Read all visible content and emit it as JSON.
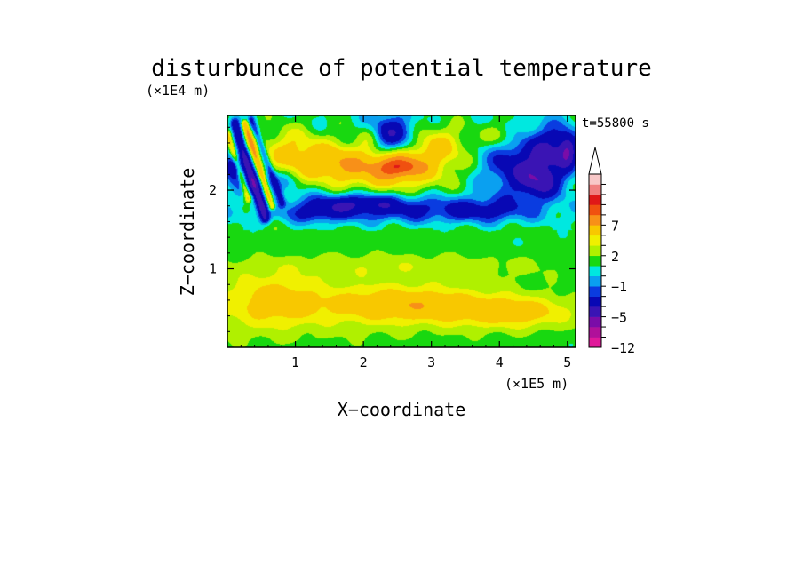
{
  "chart_data": {
    "type": "heatmap",
    "title": "disturbunce of potential temperature",
    "time_label": "t=55800 s",
    "xlabel": "X−coordinate",
    "ylabel": "Z−coordinate",
    "x_unit": "(×1E5 m)",
    "y_unit": "(×1E4 m)",
    "xlim": [
      0,
      5.12
    ],
    "ylim": [
      0,
      2.95
    ],
    "x_ticks": [
      1,
      2,
      3,
      4,
      5
    ],
    "y_ticks": [
      1,
      2
    ],
    "x_tick_labels": [
      "1",
      "2",
      "3",
      "4",
      "5"
    ],
    "y_tick_labels": [
      "1",
      "2"
    ],
    "grid": false,
    "colorbar": {
      "levels_bottom_to_top": [
        -12,
        -9,
        -7,
        -5,
        -3,
        -2,
        -1,
        0,
        1,
        2,
        3,
        5,
        7,
        9,
        12
      ],
      "colors_bottom_to_top": [
        "#e0189a",
        "#b0109a",
        "#7a0ca8",
        "#3a14b4",
        "#0808b4",
        "#0a3ce0",
        "#0aa0f0",
        "#00e8e0",
        "#18d810",
        "#b0f000",
        "#f0f000",
        "#f8c800",
        "#f89018",
        "#f05010",
        "#e01818",
        "#f08080",
        "#f8c8c8"
      ],
      "tick_labels": [
        "7",
        "2",
        "−1",
        "−5",
        "−12"
      ],
      "tick_values": [
        7,
        2,
        -1,
        -5,
        -12
      ],
      "extend": "max"
    },
    "blobs": [
      {
        "x": 0.0,
        "z": 0.5,
        "rx": 5.3,
        "rz": 0.55,
        "v": 1.6
      },
      {
        "x": 2.6,
        "z": 0.55,
        "rx": 1.2,
        "rz": 0.22,
        "v": 3.5
      },
      {
        "x": 4.2,
        "z": 0.45,
        "rx": 0.9,
        "rz": 0.2,
        "v": 3.0
      },
      {
        "x": 0.7,
        "z": 0.6,
        "rx": 0.6,
        "rz": 0.3,
        "v": 2.5
      },
      {
        "x": 2.5,
        "z": 1.05,
        "rx": 2.8,
        "rz": 0.18,
        "v": 1.3
      },
      {
        "x": 2.5,
        "z": 1.5,
        "rx": 3.0,
        "rz": 0.15,
        "v": 0.6
      },
      {
        "x": 2.4,
        "z": 2.3,
        "rx": 0.85,
        "rz": 0.3,
        "v": 5.0
      },
      {
        "x": 2.5,
        "z": 2.3,
        "rx": 0.3,
        "rz": 0.12,
        "v": 4.5
      },
      {
        "x": 1.5,
        "z": 2.35,
        "rx": 0.5,
        "rz": 0.25,
        "v": 3.0
      },
      {
        "x": 3.1,
        "z": 2.6,
        "rx": 0.45,
        "rz": 0.25,
        "v": 2.5
      },
      {
        "x": 0.9,
        "z": 2.5,
        "rx": 0.45,
        "rz": 0.3,
        "v": 3.0
      },
      {
        "x": 2.5,
        "z": 1.75,
        "rx": 1.9,
        "rz": 0.18,
        "v": -3.2
      },
      {
        "x": 1.9,
        "z": 1.85,
        "rx": 0.7,
        "rz": 0.12,
        "v": -3.2
      },
      {
        "x": 2.4,
        "z": 2.7,
        "rx": 0.35,
        "rz": 0.25,
        "v": -5.5
      },
      {
        "x": 4.3,
        "z": 2.3,
        "rx": 0.55,
        "rz": 0.35,
        "v": -4.5
      },
      {
        "x": 4.6,
        "z": 2.1,
        "rx": 0.3,
        "rz": 0.2,
        "v": -4.0
      },
      {
        "x": 4.8,
        "z": 2.55,
        "rx": 0.35,
        "rz": 0.3,
        "v": -4.0
      },
      {
        "x": 0.5,
        "z": 2.1,
        "rx": 0.4,
        "rz": 0.15,
        "v": -3.0
      },
      {
        "x": 3.8,
        "z": 1.75,
        "rx": 0.6,
        "rz": 0.15,
        "v": -2.0
      },
      {
        "x": 1.3,
        "z": 1.7,
        "rx": 0.35,
        "rz": 0.12,
        "v": -2.0
      },
      {
        "x": 0.1,
        "z": 2.3,
        "rx": 0.15,
        "rz": 0.15,
        "v": -6.0
      },
      {
        "x": 5.0,
        "z": 2.5,
        "rx": 0.12,
        "rz": 0.2,
        "v": -4.0
      },
      {
        "x": 4.0,
        "z": 2.7,
        "rx": 0.25,
        "rz": 0.15,
        "v": 2.0
      },
      {
        "x": 2.1,
        "z": 2.7,
        "rx": 0.2,
        "rz": 0.15,
        "v": 2.0
      }
    ],
    "streaks": [
      {
        "x0": 0.1,
        "z0": 2.85,
        "x1": 0.55,
        "z1": 1.65,
        "w": 0.07,
        "v": -5.0
      },
      {
        "x0": 0.25,
        "z0": 2.85,
        "x1": 0.65,
        "z1": 1.8,
        "w": 0.05,
        "v": 5.0
      },
      {
        "x0": 0.35,
        "z0": 2.9,
        "x1": 0.8,
        "z1": 1.85,
        "w": 0.05,
        "v": -3.0
      },
      {
        "x0": 0.0,
        "z0": 2.7,
        "x1": 0.3,
        "z1": 1.9,
        "w": 0.05,
        "v": 4.0
      }
    ]
  }
}
